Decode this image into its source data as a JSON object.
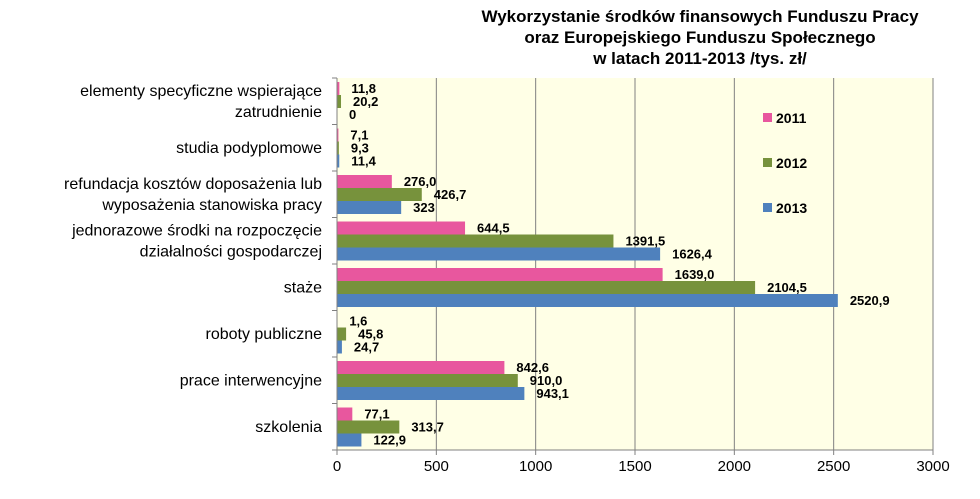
{
  "chart_data": {
    "type": "bar",
    "orientation": "horizontal",
    "title_lines": [
      "Wykorzystanie środków finansowych Funduszu Pracy",
      "oraz Europejskiego Funduszu Społecznego",
      "w latach 2011-2013 /tys. zł/"
    ],
    "categories": [
      "elementy specyficzne wspierające zatrudnienie",
      "studia podyplomowe",
      "refundacja kosztów doposażenia lub wyposażenia stanowiska pracy",
      "jednorazowe środki na rozpoczęcie działalności gospodarczej",
      "staże",
      "roboty publiczne",
      "prace interwencyjne",
      "szkolenia"
    ],
    "category_label_lines": [
      [
        "elementy specyficzne wspierające",
        "zatrudnienie"
      ],
      [
        "studia podyplomowe"
      ],
      [
        "refundacja kosztów doposażenia lub",
        "wyposażenia stanowiska pracy"
      ],
      [
        "jednorazowe środki na rozpoczęcie",
        "działalności gospodarczej"
      ],
      [
        "staże"
      ],
      [
        "roboty publiczne"
      ],
      [
        "prace interwencyjne"
      ],
      [
        "szkolenia"
      ]
    ],
    "series": [
      {
        "name": "2011",
        "color": "#e8579e",
        "values": [
          11.8,
          7.1,
          276.0,
          644.5,
          1639.0,
          1.6,
          842.6,
          77.1
        ],
        "labels": [
          "11,8",
          "7,1",
          "276,0",
          "644,5",
          "1639,0",
          "1,6",
          "842,6",
          "77,1"
        ]
      },
      {
        "name": "2012",
        "color": "#77923c",
        "values": [
          20.2,
          9.3,
          426.7,
          1391.5,
          2104.5,
          45.8,
          910.0,
          313.7
        ],
        "labels": [
          "20,2",
          "9,3",
          "426,7",
          "1391,5",
          "2104,5",
          "45,8",
          "910,0",
          "313,7"
        ]
      },
      {
        "name": "2013",
        "color": "#4f81bd",
        "values": [
          0,
          11.4,
          323,
          1626.4,
          2520.9,
          24.7,
          943.1,
          122.9
        ],
        "labels": [
          "0",
          "11,4",
          "323",
          "1626,4",
          "2520,9",
          "24,7",
          "943,1",
          "122,9"
        ]
      }
    ],
    "xlim": [
      0,
      3000
    ],
    "xticks": [
      0,
      500,
      1000,
      1500,
      2000,
      2500,
      3000
    ],
    "grid": true,
    "legend_position": "right",
    "colors": {
      "plot_background": "#ffffe6",
      "gridline": "#808080"
    }
  }
}
